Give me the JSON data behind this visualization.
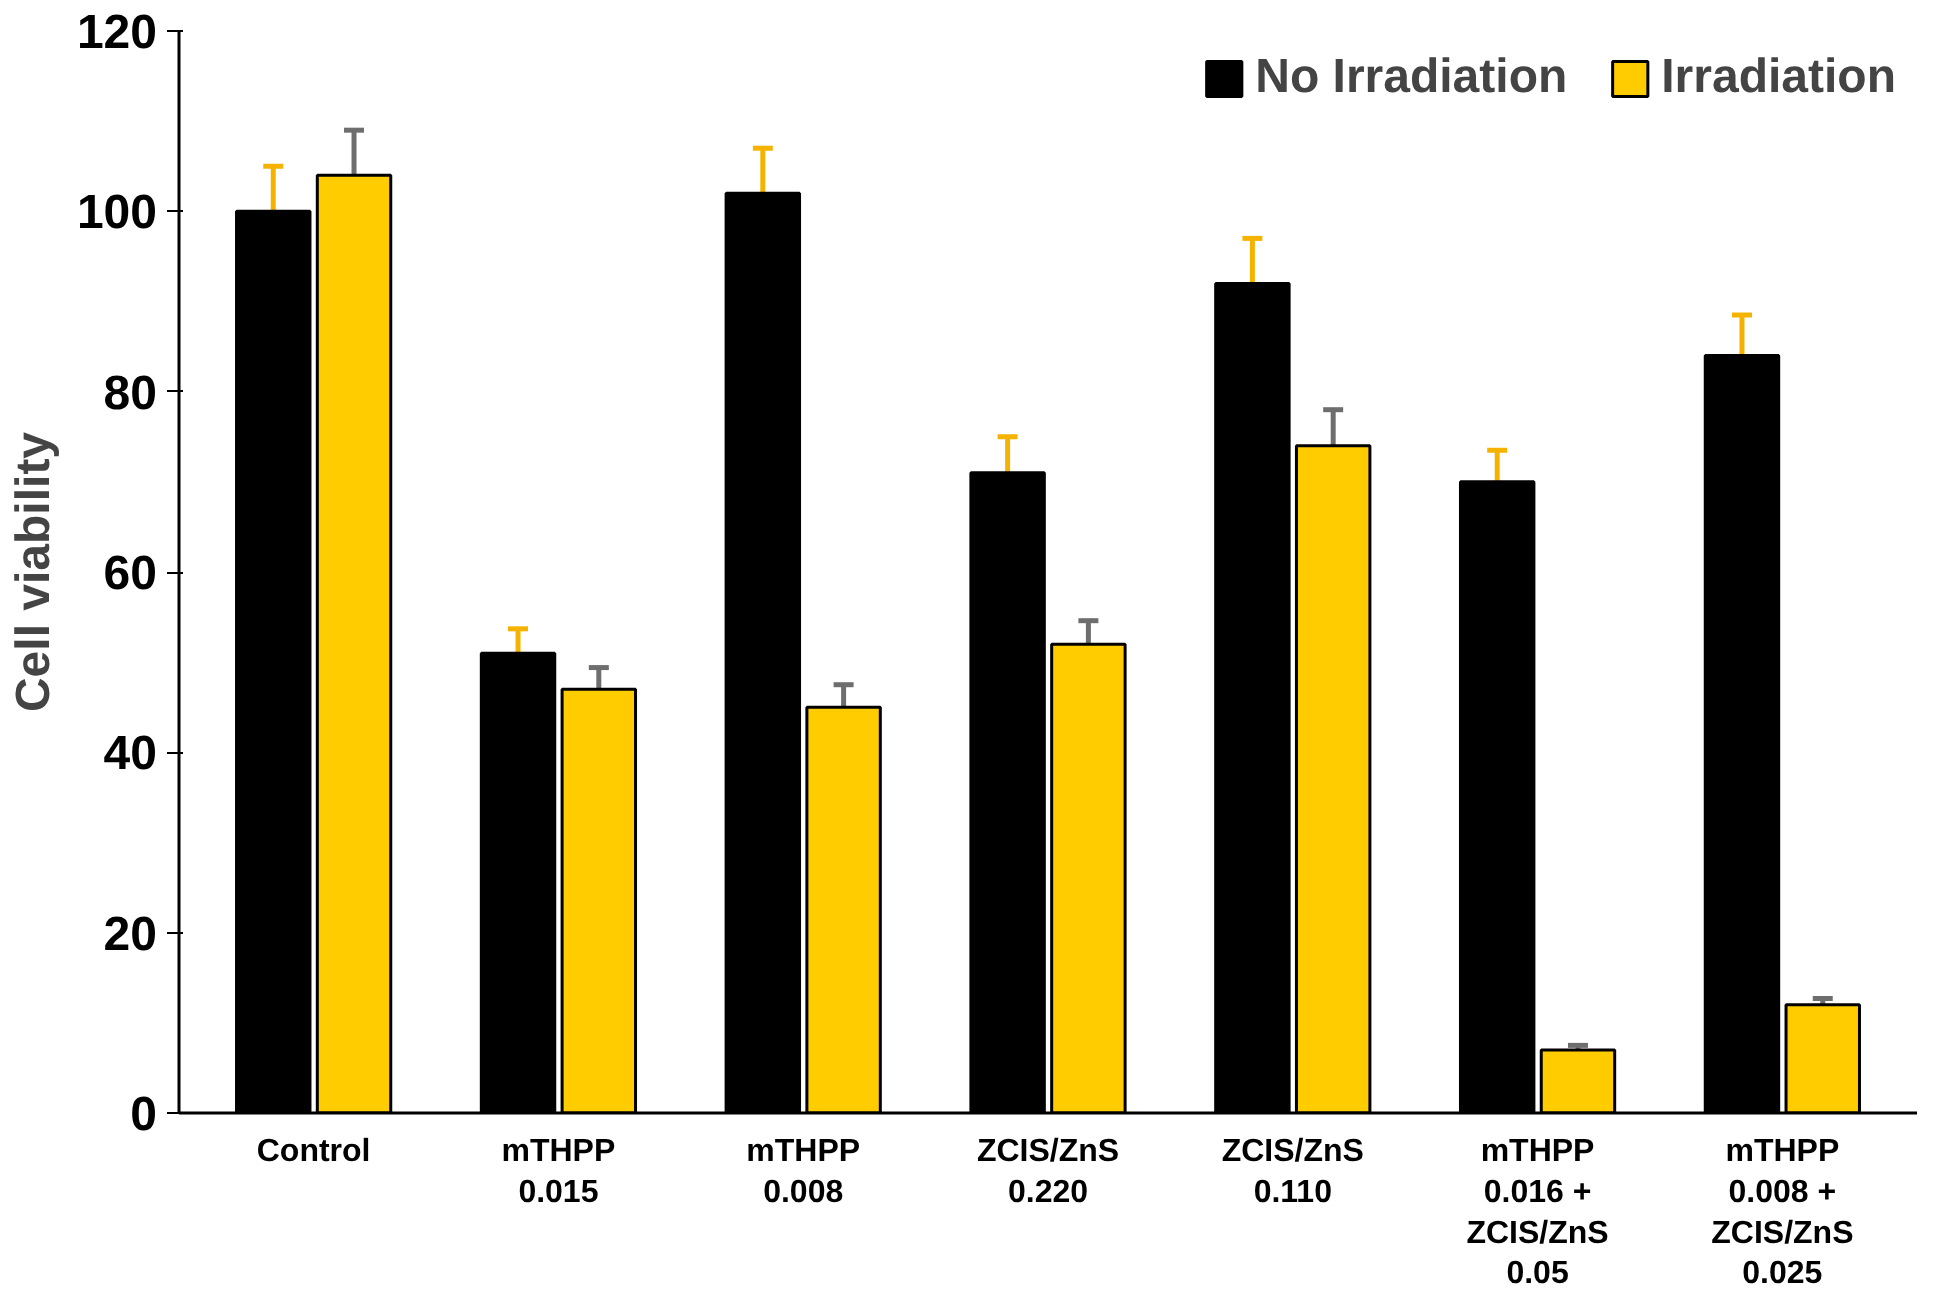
{
  "chart_data": {
    "type": "bar",
    "ylabel": "Cell viability",
    "categories": [
      "Control",
      "mTHPP\n0.015",
      "mTHPP\n0.008",
      "ZCIS/ZnS\n0.220",
      "ZCIS/ZnS\n0.110",
      "mTHPP\n0.016 +\nZCIS/ZnS\n0.05",
      "mTHPP\n0.008 +\nZCIS/ZnS\n0.025"
    ],
    "series": [
      {
        "name": "No Irradiation",
        "color": "#000000",
        "values": [
          100,
          51,
          102,
          71,
          92,
          70,
          84
        ],
        "errors": [
          5,
          2.7,
          5,
          4,
          5,
          3.5,
          4.5
        ]
      },
      {
        "name": "Irradiation",
        "color": "#ffcc00",
        "values": [
          104,
          47,
          45,
          52,
          74,
          7,
          12
        ],
        "errors": [
          5,
          2.4,
          2.5,
          2.6,
          4,
          0.5,
          0.7
        ]
      }
    ],
    "ylim": [
      0,
      120
    ],
    "yticks": [
      0,
      20,
      40,
      60,
      80,
      100,
      120
    ],
    "grid": false,
    "legend": "top right"
  }
}
